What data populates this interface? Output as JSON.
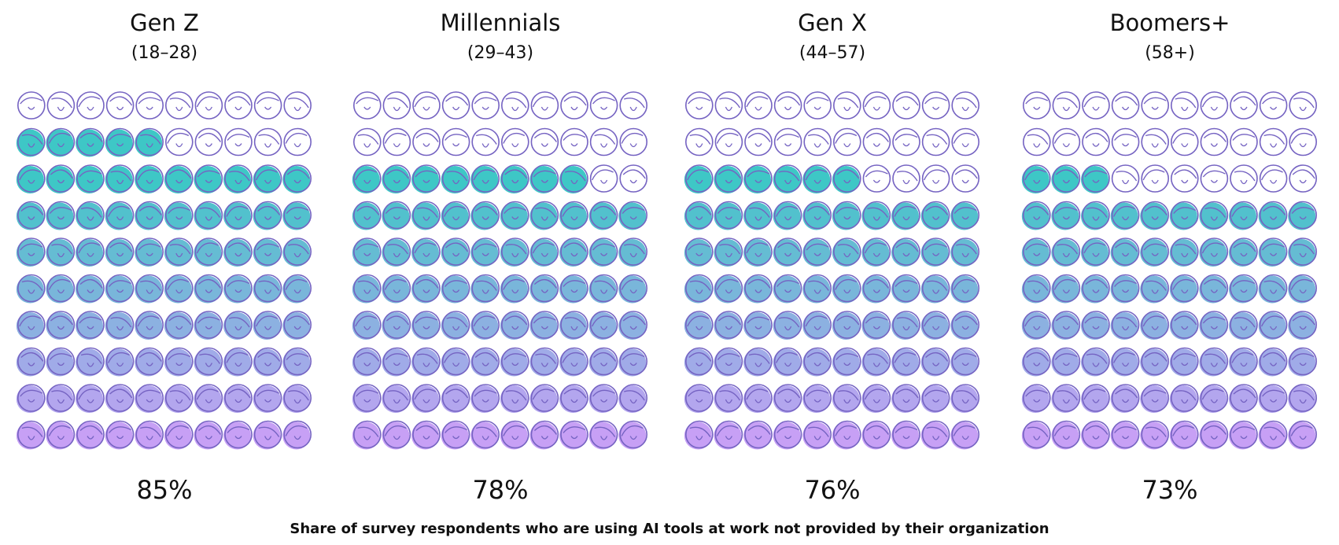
{
  "chart_data": {
    "type": "waffle",
    "categories": [
      "Gen Z",
      "Millennials",
      "Gen X",
      "Boomers+"
    ],
    "subtitles": [
      "(18–28)",
      "(29–43)",
      "(44–57)",
      "(58+)"
    ],
    "values": [
      85,
      78,
      76,
      73
    ],
    "value_labels": [
      "85%",
      "78%",
      "76%",
      "73%"
    ],
    "colors": [
      "#3ec7c6",
      "#c7a0f5"
    ],
    "outline_color": "#7563c2",
    "caption": "Share of survey respondents who are using AI tools at work not provided by their organization"
  }
}
